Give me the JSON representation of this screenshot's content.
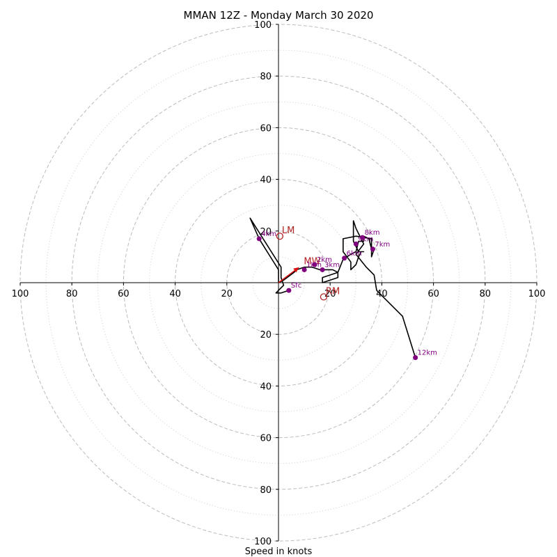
{
  "chart_data": {
    "type": "hodograph",
    "title": "MMAN 12Z - Monday March 30 2020",
    "xlabel": "Speed in knots",
    "units": "knots",
    "range_max": 100,
    "major_rings": [
      20,
      40,
      60,
      80,
      100
    ],
    "minor_rings": [
      10,
      30,
      50,
      70,
      90
    ],
    "x_tick_labels": [
      "100",
      "80",
      "60",
      "40",
      "20",
      "20",
      "40",
      "60",
      "80",
      "100"
    ],
    "x_tick_values": [
      -100,
      -80,
      -60,
      -40,
      -20,
      20,
      40,
      60,
      80,
      100
    ],
    "y_tick_labels": [
      "100",
      "80",
      "60",
      "40",
      "20",
      "20",
      "40",
      "60",
      "80",
      "100"
    ],
    "y_tick_values": [
      100,
      80,
      60,
      40,
      20,
      -20,
      -40,
      -60,
      -80,
      -100
    ],
    "trace": [
      [
        4,
        -3
      ],
      [
        1,
        -4
      ],
      [
        -1,
        -4
      ],
      [
        2,
        -1
      ],
      [
        1,
        2
      ],
      [
        1,
        6
      ],
      [
        -11,
        25
      ],
      [
        -7.5,
        17
      ],
      [
        -5,
        13
      ],
      [
        0,
        5
      ],
      [
        0,
        0
      ],
      [
        2,
        1
      ],
      [
        6,
        4
      ],
      [
        7,
        5
      ],
      [
        10,
        6
      ],
      [
        13,
        6
      ],
      [
        16,
        5
      ],
      [
        21,
        5
      ],
      [
        23,
        4
      ],
      [
        17,
        2
      ],
      [
        17,
        0
      ],
      [
        23,
        2
      ],
      [
        23,
        4
      ],
      [
        25,
        9
      ],
      [
        28,
        11
      ],
      [
        30,
        12
      ],
      [
        31,
        16
      ],
      [
        33,
        16
      ],
      [
        33,
        18
      ],
      [
        35,
        17
      ],
      [
        36,
        13
      ],
      [
        37,
        13
      ],
      [
        36,
        10
      ],
      [
        36,
        17
      ],
      [
        30,
        18
      ],
      [
        25,
        17
      ],
      [
        25,
        12
      ],
      [
        28,
        8
      ],
      [
        28,
        5
      ],
      [
        30,
        7
      ],
      [
        31,
        10
      ],
      [
        32,
        12
      ],
      [
        33,
        12
      ],
      [
        31,
        12
      ],
      [
        29,
        16
      ],
      [
        29,
        24
      ],
      [
        30,
        21
      ],
      [
        33,
        15
      ],
      [
        30,
        11
      ],
      [
        34,
        6
      ],
      [
        37,
        3
      ],
      [
        38,
        -3
      ],
      [
        40,
        -5
      ],
      [
        48,
        -13
      ],
      [
        53,
        -29
      ]
    ],
    "height_markers": [
      {
        "label": "Sfc",
        "u": 4,
        "v": -3
      },
      {
        "label": "1km",
        "u": 10,
        "v": 5
      },
      {
        "label": "2km",
        "u": 14,
        "v": 7
      },
      {
        "label": "3km",
        "u": 17,
        "v": 5
      },
      {
        "label": "6km",
        "u": 25.5,
        "v": 9.5
      },
      {
        "label": "7km",
        "u": 36.5,
        "v": 13
      },
      {
        "label": "8km",
        "u": 32.5,
        "v": 17.5
      },
      {
        "label": "9km",
        "u": 30,
        "v": 15
      },
      {
        "label": "4km",
        "u": -7.5,
        "v": 17
      },
      {
        "label": "12km",
        "u": 53,
        "v": -29
      }
    ],
    "storm_motions": [
      {
        "label": "LM",
        "u": 0.5,
        "v": 18
      },
      {
        "label": "RM",
        "u": 17.5,
        "v": -5.5
      },
      {
        "label": "MW",
        "u": 9,
        "v": 6
      }
    ],
    "mean_wind_vector": {
      "u": 8,
      "v": 6
    }
  }
}
